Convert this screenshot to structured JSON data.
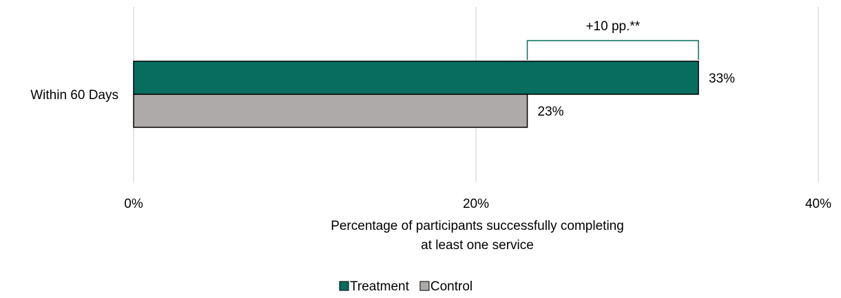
{
  "chart_data": {
    "type": "bar",
    "orientation": "horizontal",
    "categories": [
      "Within 60 Days"
    ],
    "series": [
      {
        "name": "Treatment",
        "values": [
          33
        ],
        "labels": [
          "33%"
        ],
        "color": "#076e5f"
      },
      {
        "name": "Control",
        "values": [
          23
        ],
        "labels": [
          "23%"
        ],
        "color": "#aeaaa9"
      }
    ],
    "xlim": [
      0,
      40
    ],
    "xticks": [
      0,
      20,
      40
    ],
    "xtick_labels": [
      "0%",
      "20%",
      "40%"
    ],
    "xlabel_lines": [
      "Percentage of participants successfully completing",
      "at least one service"
    ],
    "grid": true,
    "legend": "bottom-center",
    "annotation": {
      "text": "+10 pp.**",
      "from": 23,
      "to": 33,
      "color": "#076e5f"
    }
  }
}
